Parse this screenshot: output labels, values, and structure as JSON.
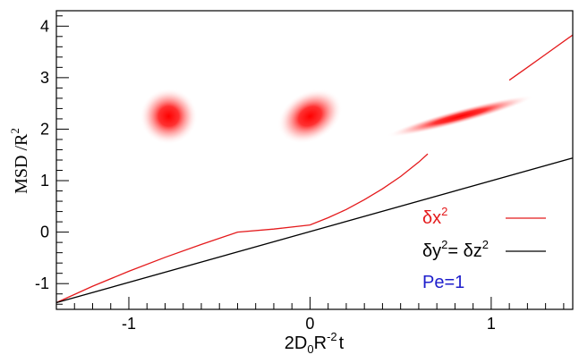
{
  "chart_data": {
    "type": "line",
    "xlabel": {
      "base": "2D",
      "sub": "0",
      "mid": "R",
      "sup": "-2",
      "tail": "t"
    },
    "ylabel": {
      "base": "MSD /R",
      "sup": "2"
    },
    "xlim": [
      -1.4,
      1.45
    ],
    "ylim": [
      -1.5,
      4.3
    ],
    "x_ticks": [
      {
        "value": -1,
        "label": "-1"
      },
      {
        "value": 0,
        "label": "0"
      },
      {
        "value": 1,
        "label": "1"
      }
    ],
    "y_ticks": [
      {
        "value": -1,
        "label": "-1"
      },
      {
        "value": 0,
        "label": "0"
      },
      {
        "value": 1,
        "label": "1"
      },
      {
        "value": 2,
        "label": "2"
      },
      {
        "value": 3,
        "label": "3"
      },
      {
        "value": 4,
        "label": "4"
      }
    ],
    "series": [
      {
        "key": "dx2",
        "color": "#e41a1c",
        "x": [
          -1.4,
          -1.2,
          -1.0,
          -0.8,
          -0.6,
          -0.4,
          -0.2,
          0.0,
          0.1,
          0.2,
          0.3,
          0.4,
          0.5,
          0.6,
          0.65,
          1.1,
          1.2,
          1.3,
          1.45
        ],
        "y": [
          -1.37,
          -1.05,
          -0.76,
          -0.49,
          -0.24,
          0.0,
          0.06,
          0.14,
          0.28,
          0.44,
          0.63,
          0.84,
          1.08,
          1.36,
          1.52,
          2.95,
          3.2,
          3.45,
          3.83
        ]
      },
      {
        "key": "dy2_dz2",
        "color": "#000000",
        "x": [
          -1.4,
          1.45
        ],
        "y": [
          -1.37,
          1.44
        ]
      }
    ],
    "legend": {
      "placement": "bottom-right",
      "entries": [
        {
          "key": "dx2",
          "color": "#e41a1c",
          "parts": [
            {
              "t": "δx"
            },
            {
              "t": "2",
              "sup": true
            }
          ]
        },
        {
          "key": "dy2_dz2",
          "color": "#000000",
          "parts": [
            {
              "t": "δy"
            },
            {
              "t": "2",
              "sup": true
            },
            {
              "t": "= δz"
            },
            {
              "t": "2",
              "sup": true
            }
          ]
        }
      ],
      "note": {
        "text": "Pe=1",
        "color": "#1f1fcc"
      }
    },
    "inset_blobs": [
      {
        "x": -0.78,
        "y": 2.25,
        "rx": 0.16,
        "ry": 0.55,
        "angle_deg": 0
      },
      {
        "x": 0.0,
        "y": 2.25,
        "rx": 0.19,
        "ry": 0.48,
        "angle_deg": -30
      },
      {
        "x": 0.83,
        "y": 2.25,
        "rx": 0.42,
        "ry": 0.14,
        "angle_deg": -15
      }
    ],
    "grid": false
  }
}
